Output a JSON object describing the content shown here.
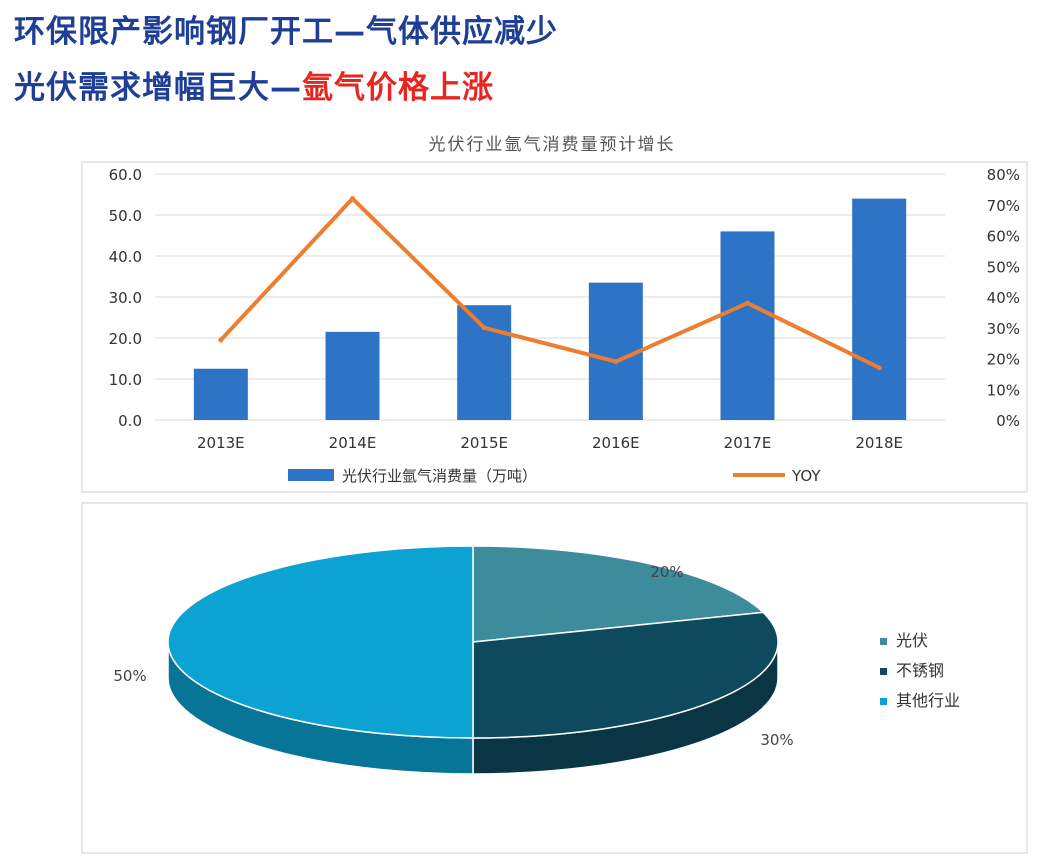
{
  "headline": {
    "line1": "环保限产影响钢厂开工—气体供应减少",
    "line2_prefix": "光伏需求增幅巨大—",
    "line2_highlight": "氩气价格上涨"
  },
  "colors": {
    "headline": "#1f3f96",
    "highlight": "#e8261f",
    "bar": "#2e74c6",
    "line": "#ed7d31",
    "pie_pv": "#3d8c9c",
    "pie_steel": "#0e4a5e",
    "pie_other": "#0aa3d2"
  },
  "chart_data": [
    {
      "type": "bar+line",
      "title": "光伏行业氩气消费量预计增长",
      "categories": [
        "2013E",
        "2014E",
        "2015E",
        "2016E",
        "2017E",
        "2018E"
      ],
      "series": [
        {
          "name": "光伏行业氩气消费量（万吨）",
          "type": "bar",
          "axis": "left",
          "values": [
            12.5,
            21.5,
            28.0,
            33.5,
            46.0,
            54.0
          ]
        },
        {
          "name": "YOY",
          "type": "line",
          "axis": "right",
          "values": [
            0.26,
            0.72,
            0.3,
            0.19,
            0.38,
            0.17
          ]
        }
      ],
      "y_left": {
        "min": 0,
        "max": 60,
        "ticks": [
          "0.0",
          "10.0",
          "20.0",
          "30.0",
          "40.0",
          "50.0",
          "60.0"
        ]
      },
      "y_right": {
        "min": 0,
        "max": 0.8,
        "ticks": [
          "0%",
          "10%",
          "20%",
          "30%",
          "40%",
          "50%",
          "60%",
          "70%",
          "80%"
        ]
      },
      "grid": true,
      "legend": "bottom"
    },
    {
      "type": "pie",
      "title": "",
      "slices": [
        {
          "label": "光伏",
          "value": 20,
          "text": "20%"
        },
        {
          "label": "不锈钢",
          "value": 30,
          "text": "30%"
        },
        {
          "label": "其他行业",
          "value": 50,
          "text": "50%"
        }
      ],
      "legend": "right"
    }
  ]
}
